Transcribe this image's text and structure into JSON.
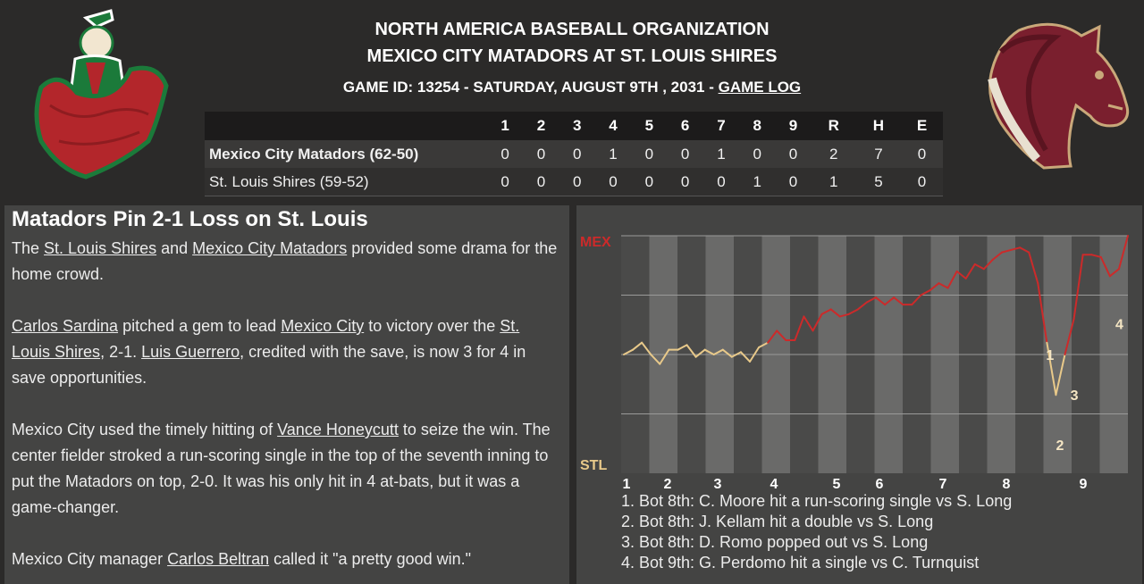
{
  "header": {
    "organization": "NORTH AMERICA BASEBALL ORGANIZATION",
    "matchup": "MEXICO CITY MATADORS AT ST. LOUIS SHIRES",
    "game_id_text": "GAME ID: 13254 - SATURDAY, AUGUST 9TH , 2031 - ",
    "game_log_link": "GAME LOG"
  },
  "logos": {
    "away": "matador-logo",
    "home": "horse-logo"
  },
  "linescore": {
    "columns": [
      "1",
      "2",
      "3",
      "4",
      "5",
      "6",
      "7",
      "8",
      "9",
      "R",
      "H",
      "E"
    ],
    "rows": [
      {
        "team": "Mexico City Matadors (62-50)",
        "values": [
          "0",
          "0",
          "0",
          "1",
          "0",
          "0",
          "1",
          "0",
          "0",
          "2",
          "7",
          "0"
        ]
      },
      {
        "team": "St. Louis Shires (59-52)",
        "values": [
          "0",
          "0",
          "0",
          "0",
          "0",
          "0",
          "0",
          "1",
          "0",
          "1",
          "5",
          "0"
        ]
      }
    ]
  },
  "story": {
    "headline": "Matadors Pin 2-1 Loss on St. Louis",
    "p1": {
      "a": "The ",
      "link1": "St. Louis Shires",
      "b": " and ",
      "link2": "Mexico City Matadors",
      "c": " provided some drama for the home crowd."
    },
    "p2": {
      "link1": "Carlos Sardina",
      "a": " pitched a gem to lead ",
      "link2": "Mexico City",
      "b": " to victory over the ",
      "link3": "St. Louis Shires",
      "c": ", 2-1. ",
      "link4": "Luis Guerrero",
      "d": ", credited with the save, is now 3 for 4 in save opportunities."
    },
    "p3": {
      "a": "Mexico City used the timely hitting of ",
      "link1": "Vance Honeycutt",
      "b": " to seize the win. The center fielder stroked a run-scoring single in the top of the seventh inning to put the Matadors on top, 2-0. It was his only hit in 4 at-bats, but it was a game-changer."
    },
    "p4": {
      "a": "Mexico City manager ",
      "link1": "Carlos Beltran",
      "b": " called it \"a pretty good win.\""
    }
  },
  "win_probability": {
    "top_label": "MEX",
    "bottom_label": "STL",
    "innings": [
      "1",
      "2",
      "3",
      "4",
      "5",
      "6",
      "7",
      "8",
      "9"
    ],
    "colors": {
      "away": "#cc2a2a",
      "home": "#e8c98a"
    },
    "markers": [
      "1",
      "2",
      "3",
      "4"
    ],
    "series": [
      0.5,
      0.52,
      0.55,
      0.5,
      0.46,
      0.52,
      0.52,
      0.54,
      0.49,
      0.52,
      0.5,
      0.52,
      0.49,
      0.51,
      0.47,
      0.53,
      0.55,
      0.6,
      0.56,
      0.56,
      0.66,
      0.6,
      0.67,
      0.69,
      0.66,
      0.67,
      0.69,
      0.72,
      0.74,
      0.71,
      0.74,
      0.71,
      0.71,
      0.75,
      0.77,
      0.8,
      0.78,
      0.85,
      0.82,
      0.88,
      0.86,
      0.9,
      0.93,
      0.94,
      0.95,
      0.93,
      0.8,
      0.55,
      0.33,
      0.5,
      0.65,
      0.92,
      0.92,
      0.91,
      0.83,
      0.86,
      1.0
    ],
    "events": [
      "1. Bot 8th: C. Moore hit a run-scoring single vs S. Long",
      "2. Bot 8th: J. Kellam hit a double vs S. Long",
      "3. Bot 8th: D. Romo popped out vs S. Long",
      "4. Bot 9th: G. Perdomo hit a single vs C. Turnquist"
    ]
  }
}
